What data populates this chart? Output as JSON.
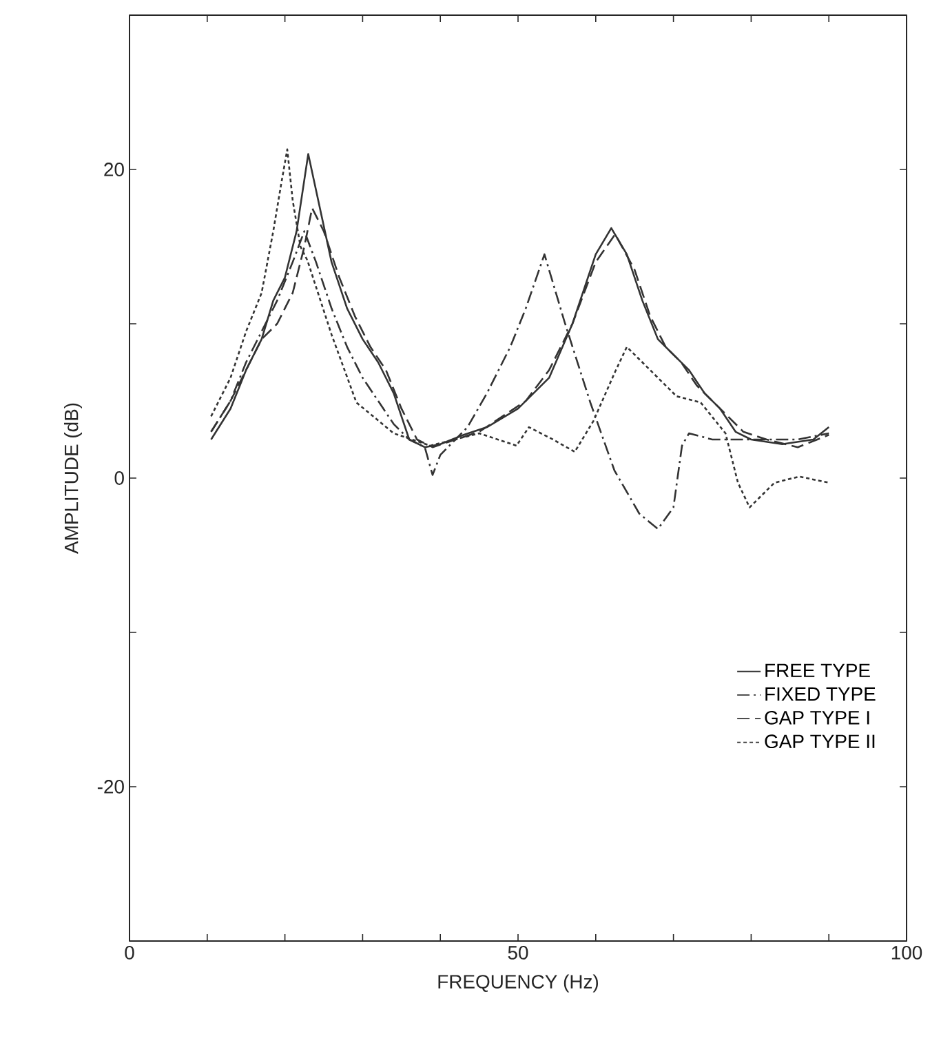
{
  "chart_data": {
    "type": "line",
    "xlabel": "FREQUENCY (Hz)",
    "ylabel": "AMPLITUDE (dB)",
    "xlim": [
      0,
      100
    ],
    "ylim": [
      -30,
      30
    ],
    "xticks": [
      0,
      {
        "value": 10,
        "label": null
      },
      {
        "value": 20,
        "label": null
      },
      {
        "value": 30,
        "label": null
      },
      {
        "value": 40,
        "label": null
      },
      50,
      {
        "value": 60,
        "label": null
      },
      {
        "value": 70,
        "label": null
      },
      {
        "value": 80,
        "label": null
      },
      {
        "value": 90,
        "label": null
      },
      100
    ],
    "yticks": [
      {
        "value": -30,
        "label": null
      },
      -20,
      {
        "value": -10,
        "label": null
      },
      0,
      {
        "value": 10,
        "label": null
      },
      20,
      {
        "value": 30,
        "label": null
      }
    ],
    "grid": false,
    "legend": "bottom right",
    "marker": "none",
    "series": [
      {
        "name": "FREE TYPE",
        "color": "#333333",
        "line_style": "solid",
        "x": [
          10.5,
          13,
          15,
          17,
          18.5,
          20,
          21.5,
          23,
          24.5,
          26,
          28,
          30,
          32,
          34,
          36,
          38,
          40,
          43,
          46,
          50,
          54,
          57,
          60,
          62,
          64,
          66,
          68,
          70,
          72,
          74,
          76,
          78,
          80,
          84,
          88,
          90
        ],
        "values": [
          2.5,
          4.5,
          7,
          9,
          11.5,
          13,
          16,
          21,
          17.5,
          14,
          11,
          9,
          7.5,
          5.5,
          2.5,
          2,
          2.2,
          2.8,
          3.3,
          4.5,
          6.5,
          10,
          14.5,
          16.2,
          14.5,
          11.5,
          9,
          8,
          7,
          5.5,
          4.5,
          3,
          2.5,
          2.2,
          2.5,
          3.3
        ]
      },
      {
        "name": "FIXED TYPE",
        "color": "#333333",
        "line_style": "dashdot",
        "x": [
          10.5,
          13,
          15,
          17,
          19,
          21,
          22.5,
          24,
          26,
          28,
          30,
          32,
          34,
          36,
          38,
          39,
          40,
          43.5,
          46,
          49,
          51,
          53.4,
          56,
          59.3,
          62.4,
          65.6,
          68,
          70,
          71.1,
          72,
          75,
          78,
          82,
          86,
          90
        ],
        "values": [
          3,
          5,
          7.5,
          9.5,
          11.5,
          14,
          16,
          14,
          11,
          8.5,
          6.5,
          5,
          3.5,
          2.5,
          2,
          0.2,
          1.5,
          3.3,
          5.5,
          8.5,
          11,
          14.5,
          10.1,
          4.9,
          0.5,
          -2.3,
          -3.3,
          -1.9,
          2.1,
          2.9,
          2.5,
          2.5,
          2.5,
          2.5,
          2.9
        ]
      },
      {
        "name": "GAP TYPE I",
        "color": "#333333",
        "line_style": "dashed",
        "x": [
          10.5,
          13,
          15,
          17,
          19,
          21,
          22.5,
          23.5,
          25,
          27,
          29,
          31,
          33,
          35,
          37,
          39,
          42,
          45,
          48,
          51,
          54,
          57,
          60,
          62.5,
          65,
          67,
          69,
          71,
          73,
          75,
          77,
          79,
          82,
          86,
          90
        ],
        "values": [
          3,
          5,
          7,
          9,
          10,
          12,
          15,
          17.5,
          16,
          13,
          10.5,
          8.5,
          7,
          4.5,
          2.5,
          2,
          2.5,
          3,
          4,
          5,
          7,
          10,
          14,
          15.8,
          13.5,
          10.5,
          8.5,
          7.5,
          6,
          5,
          4,
          3,
          2.5,
          2,
          2.8
        ]
      },
      {
        "name": "GAP TYPE II",
        "color": "#333333",
        "line_style": "dotted",
        "x": [
          10.5,
          13,
          15,
          17,
          18.5,
          19.5,
          20.3,
          21,
          22,
          22.9,
          26,
          29.2,
          34,
          38.7,
          45,
          49.8,
          51.4,
          54.5,
          57.3,
          59.7,
          62.5,
          64,
          67.2,
          70.4,
          73.5,
          76.7,
          78.3,
          79.8,
          83,
          86.2,
          90
        ],
        "values": [
          4,
          6.5,
          9.5,
          12,
          16,
          19,
          21.3,
          18,
          15,
          14.1,
          9.3,
          4.9,
          2.9,
          2.1,
          2.9,
          2.1,
          3.3,
          2.5,
          1.7,
          3.7,
          6.9,
          8.5,
          6.9,
          5.3,
          4.9,
          2.9,
          -0.3,
          -1.9,
          -0.3,
          0.1,
          -0.3
        ]
      }
    ]
  }
}
